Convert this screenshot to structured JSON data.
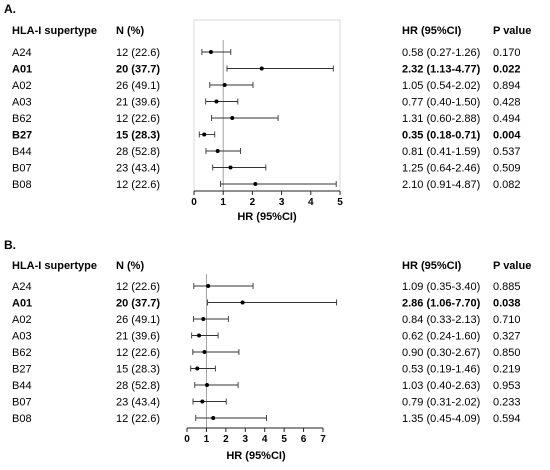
{
  "chart_data": [
    {
      "type": "forest",
      "panel": "A.",
      "headers": {
        "group": "HLA-I supertype",
        "n": "N (%)",
        "hr": "HR (95%CI)",
        "p": "P value"
      },
      "xlabel": "HR (95%CI)",
      "xlim": [
        0,
        5
      ],
      "xticks": [
        "0",
        "1",
        "2",
        "3",
        "4",
        "5"
      ],
      "reference_line": 1,
      "rows": [
        {
          "group": "A24",
          "n": "12 (22.6)",
          "hr": 0.58,
          "lo": 0.27,
          "hi": 1.26,
          "hr_text": "0.58 (0.27-1.26)",
          "p": "0.170",
          "sig": false
        },
        {
          "group": "A01",
          "n": "20 (37.7)",
          "hr": 2.32,
          "lo": 1.13,
          "hi": 4.77,
          "hr_text": "2.32 (1.13-4.77)",
          "p": "0.022",
          "sig": true
        },
        {
          "group": "A02",
          "n": "26 (49.1)",
          "hr": 1.05,
          "lo": 0.54,
          "hi": 2.02,
          "hr_text": "1.05 (0.54-2.02)",
          "p": "0.894",
          "sig": false
        },
        {
          "group": "A03",
          "n": "21 (39.6)",
          "hr": 0.77,
          "lo": 0.4,
          "hi": 1.5,
          "hr_text": "0.77 (0.40-1.50)",
          "p": "0.428",
          "sig": false
        },
        {
          "group": "B62",
          "n": "12 (22.6)",
          "hr": 1.31,
          "lo": 0.6,
          "hi": 2.88,
          "hr_text": "1.31 (0.60-2.88)",
          "p": "0.494",
          "sig": false
        },
        {
          "group": "B27",
          "n": "15 (28.3)",
          "hr": 0.35,
          "lo": 0.18,
          "hi": 0.71,
          "hr_text": "0.35 (0.18-0.71)",
          "p": "0.004",
          "sig": true
        },
        {
          "group": "B44",
          "n": "28 (52.8)",
          "hr": 0.81,
          "lo": 0.41,
          "hi": 1.59,
          "hr_text": "0.81 (0.41-1.59)",
          "p": "0.537",
          "sig": false
        },
        {
          "group": "B07",
          "n": "23 (43.4)",
          "hr": 1.25,
          "lo": 0.64,
          "hi": 2.46,
          "hr_text": "1.25 (0.64-2.46)",
          "p": "0.509",
          "sig": false
        },
        {
          "group": "B08",
          "n": "12 (22.6)",
          "hr": 2.1,
          "lo": 0.91,
          "hi": 4.87,
          "hr_text": "2.10 (0.91-4.87)",
          "p": "0.082",
          "sig": false
        }
      ]
    },
    {
      "type": "forest",
      "panel": "B.",
      "headers": {
        "group": "HLA-I supertype",
        "n": "N (%)",
        "hr": "HR (95%CI)",
        "p": "P value"
      },
      "xlabel": "HR (95%CI)",
      "xlim": [
        0,
        7
      ],
      "xticks": [
        "0",
        "1",
        "2",
        "3",
        "4",
        "5",
        "6",
        "7"
      ],
      "reference_line": 1,
      "rows": [
        {
          "group": "A24",
          "n": "12 (22.6)",
          "hr": 1.09,
          "lo": 0.35,
          "hi": 3.4,
          "hr_text": "1.09 (0.35-3.40)",
          "p": "0.885",
          "sig": false
        },
        {
          "group": "A01",
          "n": "20 (37.7)",
          "hr": 2.86,
          "lo": 1.06,
          "hi": 7.7,
          "hr_text": "2.86 (1.06-7.70)",
          "p": "0.038",
          "sig": true
        },
        {
          "group": "A02",
          "n": "26 (49.1)",
          "hr": 0.84,
          "lo": 0.33,
          "hi": 2.13,
          "hr_text": "0.84 (0.33-2.13)",
          "p": "0.710",
          "sig": false
        },
        {
          "group": "A03",
          "n": "21 (39.6)",
          "hr": 0.62,
          "lo": 0.24,
          "hi": 1.6,
          "hr_text": "0.62 (0.24-1.60)",
          "p": "0.327",
          "sig": false
        },
        {
          "group": "B62",
          "n": "12 (22.6)",
          "hr": 0.9,
          "lo": 0.3,
          "hi": 2.67,
          "hr_text": "0.90 (0.30-2.67)",
          "p": "0.850",
          "sig": false
        },
        {
          "group": "B27",
          "n": "15 (28.3)",
          "hr": 0.53,
          "lo": 0.19,
          "hi": 1.46,
          "hr_text": "0.53 (0.19-1.46)",
          "p": "0.219",
          "sig": false
        },
        {
          "group": "B44",
          "n": "28 (52.8)",
          "hr": 1.03,
          "lo": 0.4,
          "hi": 2.63,
          "hr_text": "1.03 (0.40-2.63)",
          "p": "0.953",
          "sig": false
        },
        {
          "group": "B07",
          "n": "23 (43.4)",
          "hr": 0.79,
          "lo": 0.31,
          "hi": 2.02,
          "hr_text": "0.79 (0.31-2.02)",
          "p": "0.233",
          "sig": false
        },
        {
          "group": "B08",
          "n": "12 (22.6)",
          "hr": 1.35,
          "lo": 0.45,
          "hi": 4.09,
          "hr_text": "1.35 (0.45-4.09)",
          "p": "0.594",
          "sig": false
        }
      ]
    }
  ]
}
